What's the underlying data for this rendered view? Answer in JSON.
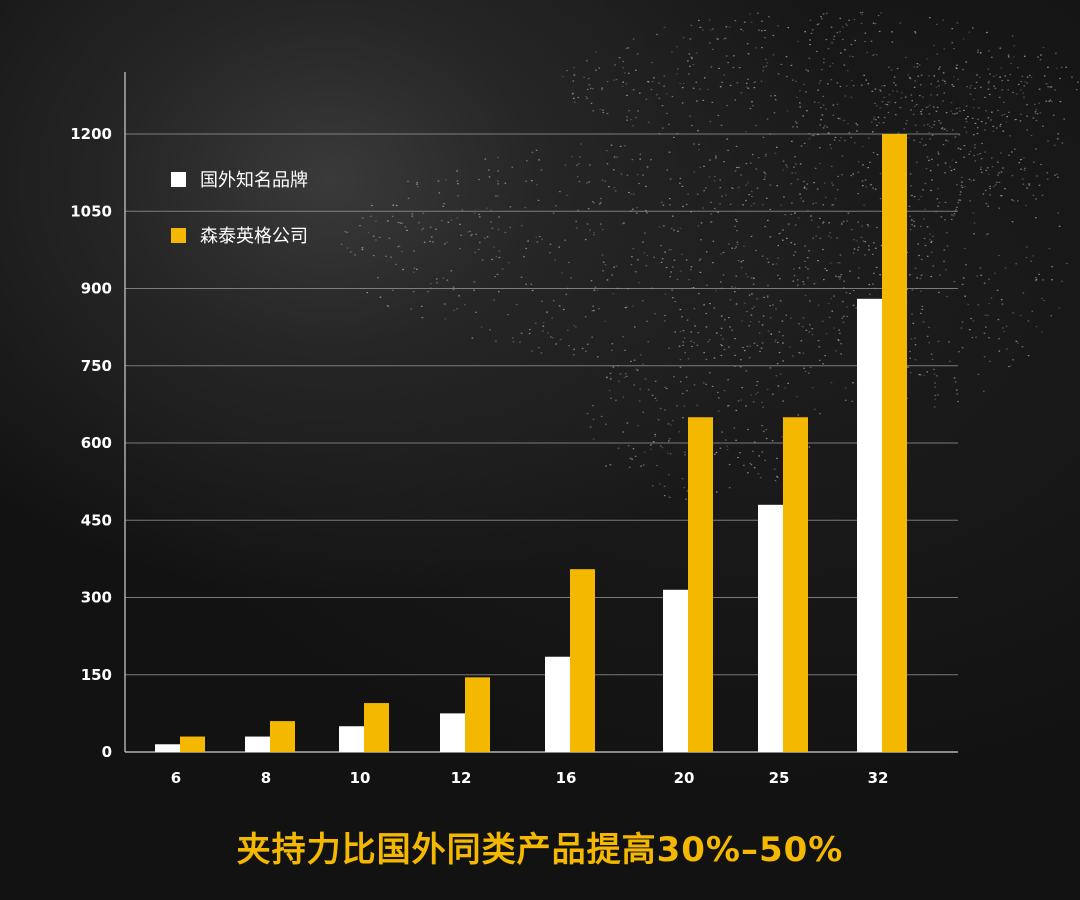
{
  "chart_data": {
    "type": "bar",
    "categories": [
      "6",
      "8",
      "10",
      "12",
      "16",
      "20",
      "25",
      "32"
    ],
    "series": [
      {
        "name": "国外知名品牌",
        "color": "#ffffff",
        "values": [
          15,
          30,
          50,
          75,
          185,
          315,
          480,
          880
        ]
      },
      {
        "name": "森泰英格公司",
        "color": "#f5b800",
        "values": [
          30,
          60,
          95,
          145,
          355,
          650,
          650,
          1200
        ]
      }
    ],
    "yticks": [
      "0",
      "150",
      "300",
      "450",
      "600",
      "750",
      "900",
      "1050",
      "1200"
    ],
    "ylim": [
      0,
      1200
    ],
    "grid": true,
    "legend_position": "top-left"
  },
  "caption": "夹持力比国外同类产品提高30%–50%",
  "colors": {
    "accent": "#f5b800",
    "bars_secondary": "#ffffff",
    "background": "#141414"
  }
}
